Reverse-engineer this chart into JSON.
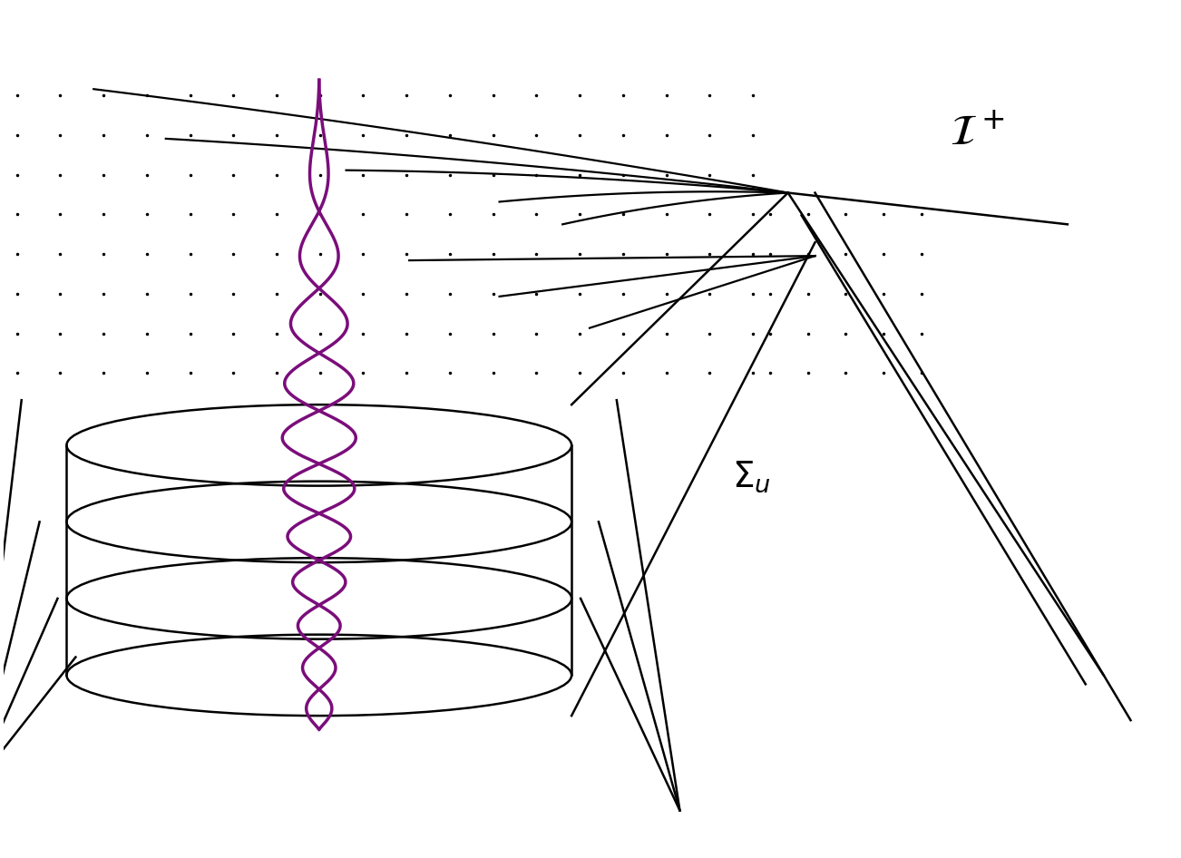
{
  "bg_color": "#ffffff",
  "line_color": "#000000",
  "purple_color": "#7B0D7B",
  "label_scri": "$\\mathcal{I}^+$",
  "label_sigma": "$\\Sigma_u$",
  "fig_width": 13.02,
  "fig_height": 9.46,
  "dpi": 100
}
